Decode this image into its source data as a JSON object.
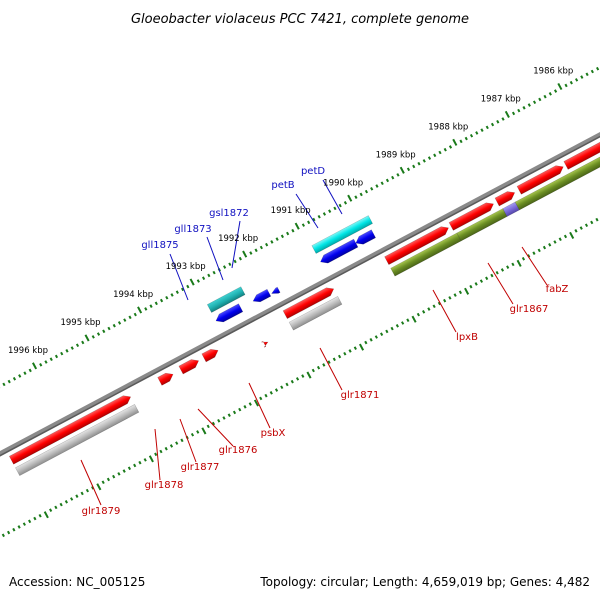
{
  "title": "Gloeobacter violaceus PCC 7421, complete genome",
  "footer": {
    "accession": "Accession: NC_005125",
    "summary": "Topology: circular; Length: 4,659,019 bp; Genes: 4,482"
  },
  "kbp_ticks": [
    "1986 kbp",
    "1987 kbp",
    "1988 kbp",
    "1989 kbp",
    "1990 kbp",
    "1991 kbp",
    "1992 kbp",
    "1993 kbp",
    "1994 kbp",
    "1995 kbp",
    "1996 kbp"
  ],
  "genes_top": [
    "petD",
    "petB",
    "gsl1872",
    "gll1873",
    "gll1875"
  ],
  "genes_bottom": [
    "fabZ",
    "glr1867",
    "lpxB",
    "glr1871",
    "psbX",
    "glr1876",
    "glr1877",
    "glr1878",
    "glr1879"
  ],
  "colors": {
    "forward_gene": "#ff0000",
    "reverse_gene": "#0000ee",
    "forward_rna": "#00dede",
    "forward_cds_bar": "#b8b8b8",
    "olive_cds_bar": "#6b8e23",
    "purple_cds_bar": "#7a6ad8",
    "label_forward": "#c00000",
    "label_reverse": "#1010c0",
    "backbone": "#808080",
    "tick": "#1a7a1a"
  }
}
